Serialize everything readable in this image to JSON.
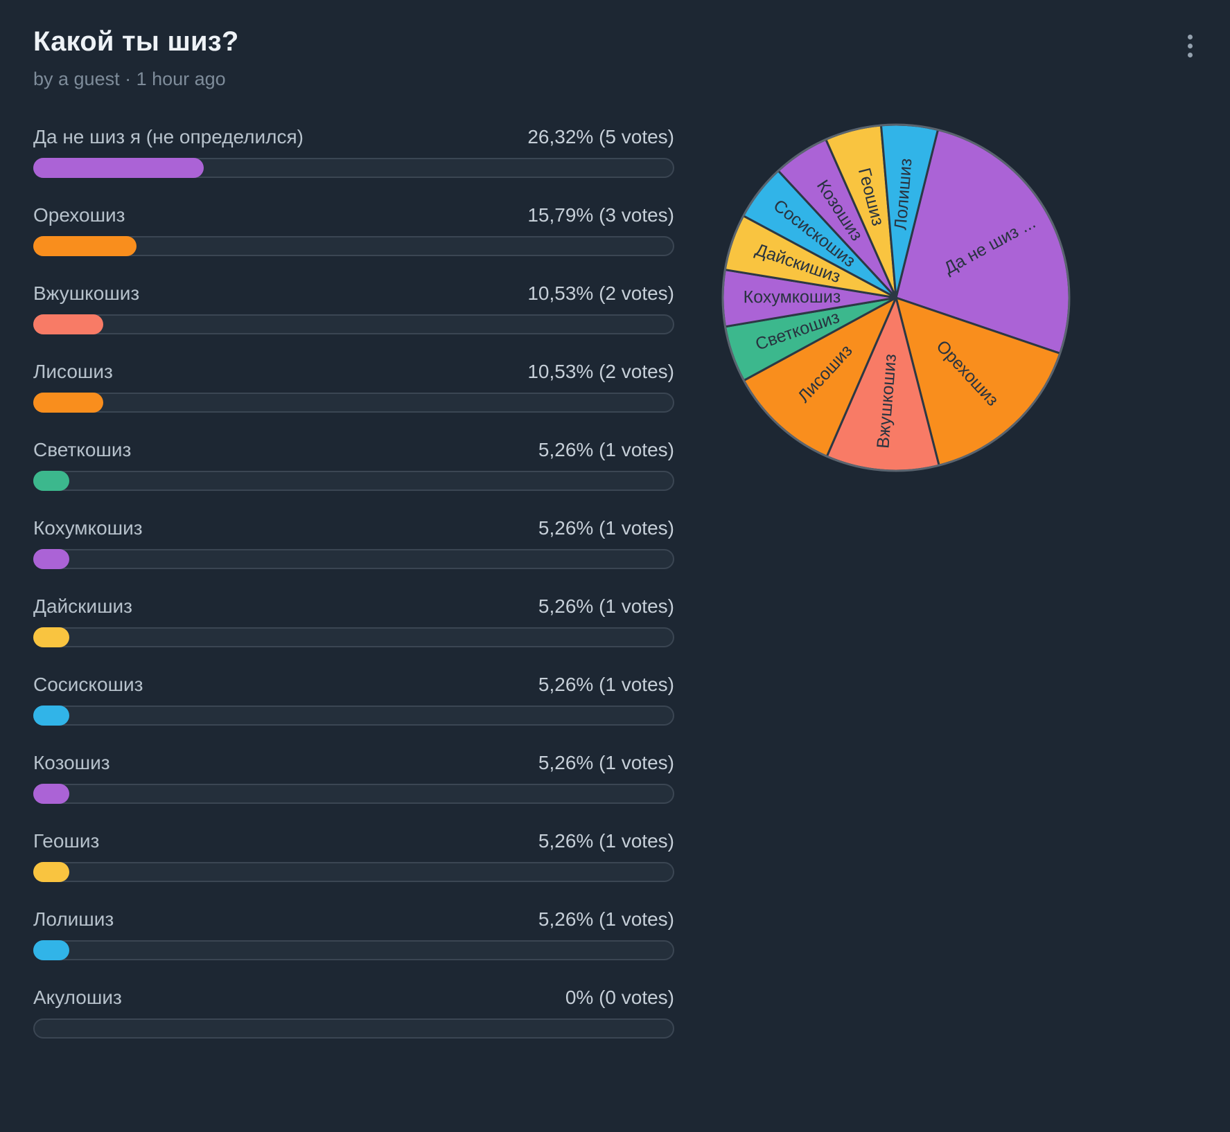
{
  "colors": {
    "purple": "#ab63d6",
    "orange": "#f98e1d",
    "salmon": "#f87b66",
    "green": "#3cb88d",
    "yellow": "#f9c440",
    "blue": "#31b4e8",
    "background": "#1d2733",
    "track": "#242f3b",
    "track_border": "#3b4653",
    "pie_stroke": "#2c3844",
    "pie_outer_ring": "#5a646f"
  },
  "header": {
    "title": "Какой ты шиз?",
    "byline": "by a guest · 1 hour ago",
    "menu_icon": "kebab-menu-icon"
  },
  "poll": {
    "options": [
      {
        "label": "Да не шиз я (не определился)",
        "percent_label": "26,32% (5 votes)",
        "percent": 26.32,
        "votes": 5,
        "color": "#ab63d6"
      },
      {
        "label": "Орехошиз",
        "percent_label": "15,79% (3 votes)",
        "percent": 15.79,
        "votes": 3,
        "color": "#f98e1d"
      },
      {
        "label": "Вжушкошиз",
        "percent_label": "10,53% (2 votes)",
        "percent": 10.53,
        "votes": 2,
        "color": "#f87b66"
      },
      {
        "label": "Лисошиз",
        "percent_label": "10,53% (2 votes)",
        "percent": 10.53,
        "votes": 2,
        "color": "#f98e1d"
      },
      {
        "label": "Светкошиз",
        "percent_label": "5,26% (1 votes)",
        "percent": 5.26,
        "votes": 1,
        "color": "#3cb88d"
      },
      {
        "label": "Кохумкошиз",
        "percent_label": "5,26% (1 votes)",
        "percent": 5.26,
        "votes": 1,
        "color": "#ab63d6"
      },
      {
        "label": "Дайскишиз",
        "percent_label": "5,26% (1 votes)",
        "percent": 5.26,
        "votes": 1,
        "color": "#f9c440"
      },
      {
        "label": "Сосискошиз",
        "percent_label": "5,26% (1 votes)",
        "percent": 5.26,
        "votes": 1,
        "color": "#31b4e8"
      },
      {
        "label": "Козошиз",
        "percent_label": "5,26% (1 votes)",
        "percent": 5.26,
        "votes": 1,
        "color": "#ab63d6"
      },
      {
        "label": "Геошиз",
        "percent_label": "5,26% (1 votes)",
        "percent": 5.26,
        "votes": 1,
        "color": "#f9c440"
      },
      {
        "label": "Лолишиз",
        "percent_label": "5,26% (1 votes)",
        "percent": 5.26,
        "votes": 1,
        "color": "#31b4e8"
      },
      {
        "label": "Акулошиз",
        "percent_label": "0% (0 votes)",
        "percent": 0,
        "votes": 0,
        "color": "#ab63d6"
      }
    ]
  },
  "chart_data": {
    "type": "pie",
    "title": "",
    "legend": "none",
    "start_angle_deg": 14,
    "slices": [
      {
        "label": "Да не шиз ...",
        "full_label": "Да не шиз я (не определился)",
        "value": 26.32,
        "color": "#ab63d6"
      },
      {
        "label": "Орехошиз",
        "value": 15.79,
        "color": "#f98e1d"
      },
      {
        "label": "Вжушкошиз",
        "value": 10.53,
        "color": "#f87b66"
      },
      {
        "label": "Лисошиз",
        "value": 10.53,
        "color": "#f98e1d"
      },
      {
        "label": "Светкошиз",
        "value": 5.26,
        "color": "#3cb88d"
      },
      {
        "label": "Кохумкошиз",
        "value": 5.26,
        "color": "#ab63d6"
      },
      {
        "label": "Дайскишиз",
        "value": 5.26,
        "color": "#f9c440"
      },
      {
        "label": "Сосискошиз",
        "value": 5.26,
        "color": "#31b4e8"
      },
      {
        "label": "Козошиз",
        "value": 5.26,
        "color": "#ab63d6"
      },
      {
        "label": "Геошиз",
        "value": 5.26,
        "color": "#f9c440"
      },
      {
        "label": "Лолишиз",
        "value": 5.26,
        "color": "#31b4e8"
      }
    ]
  }
}
